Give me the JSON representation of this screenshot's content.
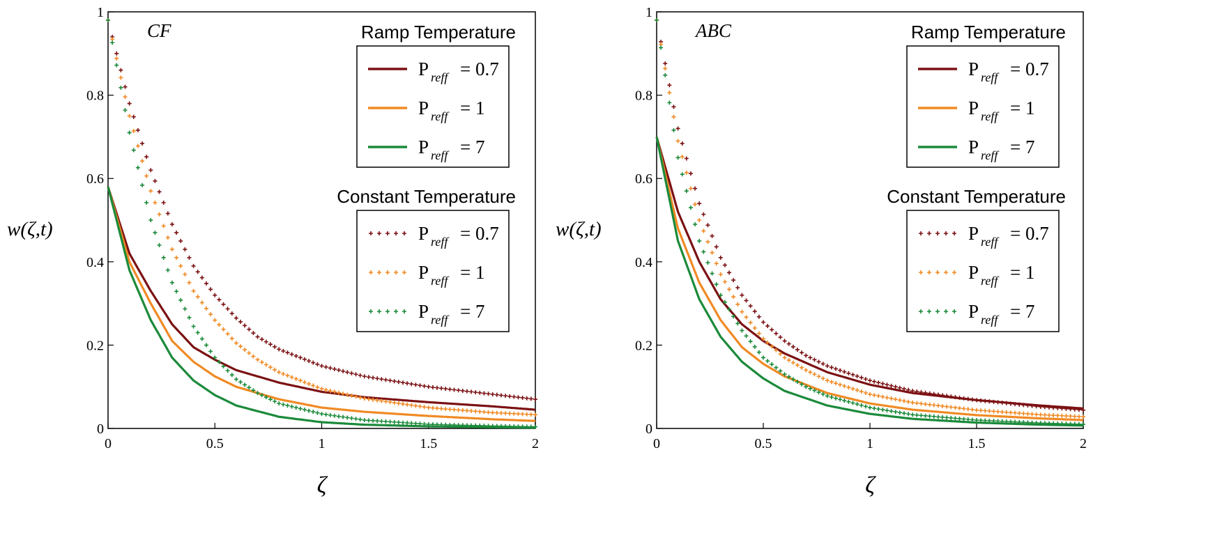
{
  "chart_data": [
    {
      "type": "line",
      "panel_label": "CF",
      "xlabel": "ζ",
      "ylabel": "w(ζ,t)",
      "xlim": [
        0,
        2
      ],
      "ylim": [
        0,
        1
      ],
      "x_ticks": [
        "0",
        "0.5",
        "1",
        "1.5",
        "2"
      ],
      "y_ticks": [
        "0",
        "0.2",
        "0.4",
        "0.6",
        "0.8",
        "1"
      ],
      "legend_groups": [
        {
          "title": "Ramp Temperature",
          "style": "solid",
          "entries": [
            {
              "symbol": "P",
              "subscript": "reff",
              "value": "= 0.7",
              "color": "#7b1113"
            },
            {
              "symbol": "P",
              "subscript": "reff",
              "value": "= 1",
              "color": "#f08a24"
            },
            {
              "symbol": "P",
              "subscript": "reff",
              "value": "= 7",
              "color": "#1b8a3a"
            }
          ]
        },
        {
          "title": "Constant Temperature",
          "style": "dotted",
          "entries": [
            {
              "symbol": "P",
              "subscript": "reff",
              "value": "= 0.7",
              "color": "#7b1113"
            },
            {
              "symbol": "P",
              "subscript": "reff",
              "value": "= 1",
              "color": "#f08a24"
            },
            {
              "symbol": "P",
              "subscript": "reff",
              "value": "= 7",
              "color": "#1b8a3a"
            }
          ]
        }
      ],
      "series": [
        {
          "name": "Ramp Temperature, Preff = 0.7",
          "style": "solid",
          "color": "#7b1113",
          "x": [
            0,
            0.1,
            0.2,
            0.3,
            0.4,
            0.5,
            0.6,
            0.8,
            1.0,
            1.2,
            1.5,
            1.8,
            2.0
          ],
          "y": [
            0.58,
            0.42,
            0.33,
            0.25,
            0.195,
            0.165,
            0.14,
            0.11,
            0.088,
            0.075,
            0.063,
            0.053,
            0.045
          ]
        },
        {
          "name": "Ramp Temperature, Preff = 1",
          "style": "solid",
          "color": "#f08a24",
          "x": [
            0,
            0.1,
            0.2,
            0.3,
            0.4,
            0.5,
            0.6,
            0.8,
            1.0,
            1.2,
            1.5,
            1.8,
            2.0
          ],
          "y": [
            0.58,
            0.4,
            0.3,
            0.21,
            0.16,
            0.125,
            0.1,
            0.07,
            0.05,
            0.04,
            0.03,
            0.022,
            0.018
          ]
        },
        {
          "name": "Ramp Temperature, Preff = 7",
          "style": "solid",
          "color": "#1b8a3a",
          "x": [
            0,
            0.1,
            0.2,
            0.3,
            0.4,
            0.5,
            0.6,
            0.8,
            1.0,
            1.2,
            1.5,
            1.8,
            2.0
          ],
          "y": [
            0.58,
            0.38,
            0.26,
            0.17,
            0.115,
            0.08,
            0.055,
            0.028,
            0.015,
            0.009,
            0.005,
            0.003,
            0.002
          ]
        },
        {
          "name": "Constant Temperature, Preff = 0.7",
          "style": "dotted",
          "color": "#7b1113",
          "x": [
            0,
            0.1,
            0.2,
            0.3,
            0.4,
            0.5,
            0.6,
            0.7,
            0.8,
            1.0,
            1.2,
            1.5,
            1.8,
            2.0
          ],
          "y": [
            0.98,
            0.78,
            0.62,
            0.49,
            0.39,
            0.32,
            0.265,
            0.22,
            0.19,
            0.15,
            0.125,
            0.1,
            0.082,
            0.07
          ]
        },
        {
          "name": "Constant Temperature, Preff = 1",
          "style": "dotted",
          "color": "#f08a24",
          "x": [
            0,
            0.1,
            0.2,
            0.3,
            0.4,
            0.5,
            0.6,
            0.7,
            0.8,
            1.0,
            1.2,
            1.5,
            1.8,
            2.0
          ],
          "y": [
            0.98,
            0.75,
            0.57,
            0.43,
            0.33,
            0.26,
            0.205,
            0.165,
            0.135,
            0.095,
            0.072,
            0.05,
            0.038,
            0.033
          ]
        },
        {
          "name": "Constant Temperature, Preff = 7",
          "style": "dotted",
          "color": "#1b8a3a",
          "x": [
            0,
            0.1,
            0.2,
            0.3,
            0.4,
            0.5,
            0.6,
            0.7,
            0.8,
            1.0,
            1.2,
            1.5,
            1.8,
            2.0
          ],
          "y": [
            0.98,
            0.71,
            0.5,
            0.35,
            0.245,
            0.17,
            0.118,
            0.085,
            0.06,
            0.035,
            0.02,
            0.01,
            0.006,
            0.004
          ]
        }
      ]
    },
    {
      "type": "line",
      "panel_label": "ABC",
      "xlabel": "ζ",
      "ylabel": "w(ζ,t)",
      "xlim": [
        0,
        2
      ],
      "ylim": [
        0,
        1
      ],
      "x_ticks": [
        "0",
        "0.5",
        "1",
        "1.5",
        "2"
      ],
      "y_ticks": [
        "0",
        "0.2",
        "0.4",
        "0.6",
        "0.8",
        "1"
      ],
      "legend_groups": [
        {
          "title": "Ramp Temperature",
          "style": "solid",
          "entries": [
            {
              "symbol": "P",
              "subscript": "reff",
              "value": "= 0.7",
              "color": "#7b1113"
            },
            {
              "symbol": "P",
              "subscript": "reff",
              "value": "= 1",
              "color": "#f08a24"
            },
            {
              "symbol": "P",
              "subscript": "reff",
              "value": "= 7",
              "color": "#1b8a3a"
            }
          ]
        },
        {
          "title": "Constant Temperature",
          "style": "dotted",
          "entries": [
            {
              "symbol": "P",
              "subscript": "reff",
              "value": "= 0.7",
              "color": "#7b1113"
            },
            {
              "symbol": "P",
              "subscript": "reff",
              "value": "= 1",
              "color": "#f08a24"
            },
            {
              "symbol": "P",
              "subscript": "reff",
              "value": "= 7",
              "color": "#1b8a3a"
            }
          ]
        }
      ],
      "series": [
        {
          "name": "Ramp Temperature, Preff = 0.7",
          "style": "solid",
          "color": "#7b1113",
          "x": [
            0,
            0.1,
            0.2,
            0.3,
            0.4,
            0.5,
            0.6,
            0.8,
            1.0,
            1.2,
            1.5,
            1.8,
            2.0
          ],
          "y": [
            0.7,
            0.52,
            0.4,
            0.31,
            0.25,
            0.21,
            0.18,
            0.135,
            0.105,
            0.085,
            0.068,
            0.055,
            0.048
          ]
        },
        {
          "name": "Ramp Temperature, Preff = 1",
          "style": "solid",
          "color": "#f08a24",
          "x": [
            0,
            0.1,
            0.2,
            0.3,
            0.4,
            0.5,
            0.6,
            0.8,
            1.0,
            1.2,
            1.5,
            1.8,
            2.0
          ],
          "y": [
            0.7,
            0.48,
            0.35,
            0.26,
            0.195,
            0.155,
            0.125,
            0.085,
            0.06,
            0.045,
            0.032,
            0.024,
            0.02
          ]
        },
        {
          "name": "Ramp Temperature, Preff = 7",
          "style": "solid",
          "color": "#1b8a3a",
          "x": [
            0,
            0.1,
            0.2,
            0.3,
            0.4,
            0.5,
            0.6,
            0.8,
            1.0,
            1.2,
            1.5,
            1.8,
            2.0
          ],
          "y": [
            0.7,
            0.45,
            0.31,
            0.22,
            0.16,
            0.12,
            0.09,
            0.055,
            0.035,
            0.023,
            0.014,
            0.009,
            0.007
          ]
        },
        {
          "name": "Constant Temperature, Preff = 0.7",
          "style": "dotted",
          "color": "#7b1113",
          "x": [
            0,
            0.1,
            0.2,
            0.3,
            0.4,
            0.5,
            0.6,
            0.7,
            0.8,
            1.0,
            1.2,
            1.5,
            1.8,
            2.0
          ],
          "y": [
            0.98,
            0.72,
            0.54,
            0.41,
            0.32,
            0.255,
            0.21,
            0.175,
            0.15,
            0.115,
            0.09,
            0.068,
            0.052,
            0.044
          ]
        },
        {
          "name": "Constant Temperature, Preff = 1",
          "style": "dotted",
          "color": "#f08a24",
          "x": [
            0,
            0.1,
            0.2,
            0.3,
            0.4,
            0.5,
            0.6,
            0.7,
            0.8,
            1.0,
            1.2,
            1.5,
            1.8,
            2.0
          ],
          "y": [
            0.98,
            0.69,
            0.5,
            0.37,
            0.28,
            0.215,
            0.17,
            0.14,
            0.115,
            0.082,
            0.062,
            0.044,
            0.033,
            0.028
          ]
        },
        {
          "name": "Constant Temperature, Preff = 7",
          "style": "dotted",
          "color": "#1b8a3a",
          "x": [
            0,
            0.1,
            0.2,
            0.3,
            0.4,
            0.5,
            0.6,
            0.7,
            0.8,
            1.0,
            1.2,
            1.5,
            1.8,
            2.0
          ],
          "y": [
            0.98,
            0.65,
            0.45,
            0.32,
            0.235,
            0.17,
            0.13,
            0.1,
            0.078,
            0.05,
            0.033,
            0.02,
            0.013,
            0.01
          ]
        }
      ]
    }
  ]
}
